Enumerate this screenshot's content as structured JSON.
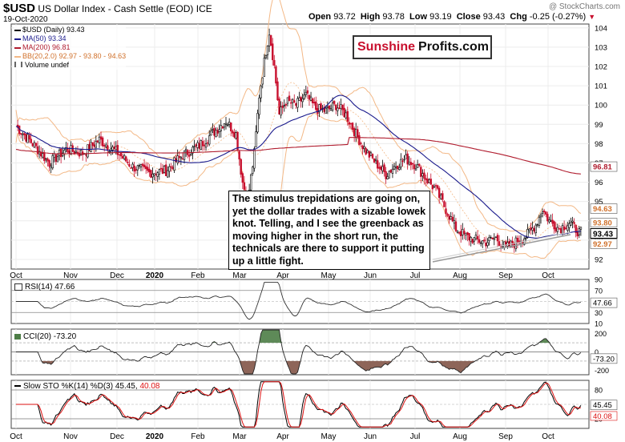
{
  "header": {
    "symbol": "$USD",
    "name": "US Dollar Index - Cash Settle (EOD)",
    "exchange": "ICE",
    "date": "19-Oct-2020",
    "open_label": "Open",
    "open": "93.72",
    "high_label": "High",
    "high": "93.78",
    "low_label": "Low",
    "low": "93.19",
    "close_label": "Close",
    "close": "93.43",
    "chg_label": "Chg",
    "chg": "-0.25 (-0.27%)",
    "copyright": "@ StockCharts.com"
  },
  "brand": {
    "part1": "Sunshine",
    "part2": "Profits.com"
  },
  "legend": {
    "price": "$USD (Daily) 93.43",
    "ma50": "MA(50) 93.34",
    "ma200": "MA(200) 96.81",
    "bb": "BB(20,2.0) 92.97 - 93.80 - 94.63",
    "volume": "Volume undef"
  },
  "annotation": "The stimulus trepidations are going on, yet the dollar trades with a sizable lowek knot. Telling, and I see the greenback as moving higher in the short run, the technicals are there to support it putting up a little fight.",
  "colors": {
    "up_candle": "#000000",
    "down_candle": "#c8102e",
    "ma50": "#1a1a8c",
    "ma200": "#b01c2e",
    "bb": "#f3b886",
    "rsi": "#333333",
    "cci_fill": "#4d7d46",
    "cci_neg_fill": "#7a4a3c",
    "sto_k": "#000000",
    "sto_d": "#dd1111"
  },
  "panels": {
    "rsi_label": "RSI(14) 47.66",
    "cci_label": "CCI(20) -73.20",
    "sto_label_1": "Slow STO %K(14) %D(3) 45.45,",
    "sto_label_2": "40.08"
  },
  "chart_data": [
    {
      "type": "candlestick",
      "title": "$USD US Dollar Index - Cash Settle (EOD)",
      "ylim": [
        91.5,
        104.2
      ],
      "yticks": [
        "92",
        "93",
        "94",
        "95",
        "96",
        "97",
        "98",
        "99",
        "100",
        "101",
        "102",
        "103",
        "104"
      ],
      "months": [
        "Oct",
        "Nov",
        "Dec",
        "2020",
        "Feb",
        "Mar",
        "Apr",
        "May",
        "Jun",
        "Jul",
        "Aug",
        "Sep",
        "Oct"
      ],
      "price_labels": {
        "bb_upper": "94.63",
        "bb_mid": "93.80",
        "close": "93.43",
        "bb_lower": "92.97",
        "ma200": "96.81"
      },
      "close_series": [
        {
          "x": 0,
          "y": 98.9
        },
        {
          "x": 10,
          "y": 98.0
        },
        {
          "x": 20,
          "y": 97.0
        },
        {
          "x": 30,
          "y": 97.7
        },
        {
          "x": 40,
          "y": 97.5
        },
        {
          "x": 50,
          "y": 98.2
        },
        {
          "x": 60,
          "y": 97.6
        },
        {
          "x": 70,
          "y": 96.8
        },
        {
          "x": 80,
          "y": 96.5
        },
        {
          "x": 90,
          "y": 96.6
        },
        {
          "x": 100,
          "y": 97.4
        },
        {
          "x": 110,
          "y": 97.9
        },
        {
          "x": 120,
          "y": 98.7
        },
        {
          "x": 126,
          "y": 99.2
        },
        {
          "x": 132,
          "y": 98.5
        },
        {
          "x": 136,
          "y": 96.0
        },
        {
          "x": 139,
          "y": 95.0
        },
        {
          "x": 143,
          "y": 97.5
        },
        {
          "x": 146,
          "y": 100.5
        },
        {
          "x": 150,
          "y": 102.8
        },
        {
          "x": 152,
          "y": 103.8
        },
        {
          "x": 155,
          "y": 102.0
        },
        {
          "x": 158,
          "y": 99.5
        },
        {
          "x": 162,
          "y": 100.2
        },
        {
          "x": 168,
          "y": 100.0
        },
        {
          "x": 174,
          "y": 100.5
        },
        {
          "x": 180,
          "y": 99.8
        },
        {
          "x": 186,
          "y": 99.7
        },
        {
          "x": 192,
          "y": 100.0
        },
        {
          "x": 198,
          "y": 99.5
        },
        {
          "x": 204,
          "y": 98.5
        },
        {
          "x": 210,
          "y": 97.6
        },
        {
          "x": 216,
          "y": 97.0
        },
        {
          "x": 222,
          "y": 96.4
        },
        {
          "x": 228,
          "y": 96.9
        },
        {
          "x": 234,
          "y": 97.2
        },
        {
          "x": 240,
          "y": 96.9
        },
        {
          "x": 246,
          "y": 96.2
        },
        {
          "x": 252,
          "y": 95.6
        },
        {
          "x": 258,
          "y": 94.6
        },
        {
          "x": 264,
          "y": 93.6
        },
        {
          "x": 270,
          "y": 93.2
        },
        {
          "x": 276,
          "y": 93.0
        },
        {
          "x": 282,
          "y": 92.9
        },
        {
          "x": 288,
          "y": 93.1
        },
        {
          "x": 294,
          "y": 92.6
        },
        {
          "x": 300,
          "y": 92.9
        },
        {
          "x": 306,
          "y": 93.2
        },
        {
          "x": 312,
          "y": 93.8
        },
        {
          "x": 316,
          "y": 94.6
        },
        {
          "x": 320,
          "y": 94.0
        },
        {
          "x": 326,
          "y": 93.6
        },
        {
          "x": 332,
          "y": 93.9
        },
        {
          "x": 338,
          "y": 93.4
        }
      ]
    },
    {
      "type": "line",
      "title": "RSI(14) 47.66",
      "ylim": [
        10,
        90
      ],
      "yticks": [
        "90",
        "70",
        "50",
        "30",
        "10"
      ],
      "value_label": "47.66"
    },
    {
      "type": "area",
      "title": "CCI(20) -73.20",
      "ylim": [
        -250,
        250
      ],
      "yticks": [
        "200",
        "0",
        "-200"
      ],
      "value_label": "-73.20"
    },
    {
      "type": "line",
      "title": "Slow STO %K(14) %D(3) 45.45, 40.08",
      "ylim": [
        0,
        100
      ],
      "yticks": [
        "80",
        "20"
      ],
      "value_labels": [
        "45.45",
        "40.08"
      ]
    }
  ]
}
